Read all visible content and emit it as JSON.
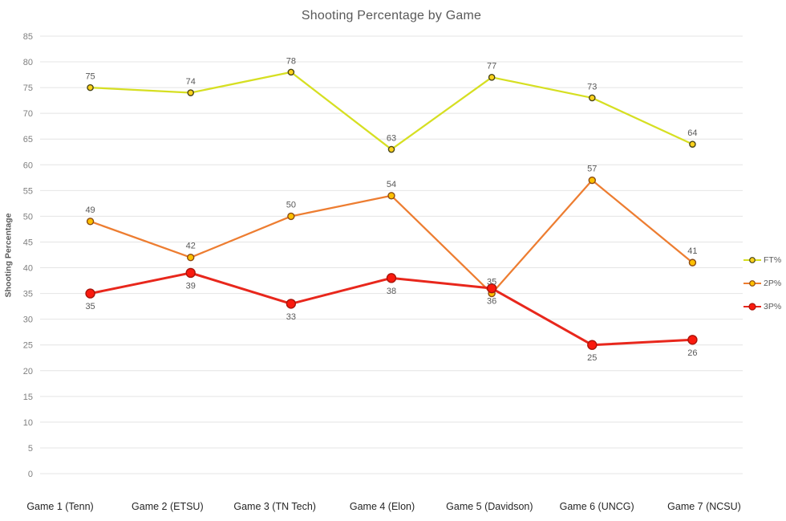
{
  "chart_data": {
    "type": "line",
    "title": "Shooting Percentage by Game",
    "xlabel": "",
    "ylabel": "Shooting Percentage",
    "categories": [
      "Game 1 (Tenn)",
      "Game 2 (ETSU)",
      "Game 3 (TN Tech)",
      "Game 4 (Elon)",
      "Game 5 (Davidson)",
      "Game 6 (UNCG)",
      "Game 7 (NCSU)"
    ],
    "series": [
      {
        "name": "FT%",
        "values": [
          75,
          74,
          78,
          63,
          77,
          73,
          64
        ],
        "line_color": "#d6df22",
        "marker_fill": "#ffd21c",
        "marker_stroke": "#494616",
        "marker_radius": 3.6,
        "line_width": 2.25,
        "label_position": "above"
      },
      {
        "name": "2P%",
        "values": [
          49,
          42,
          50,
          54,
          35,
          57,
          41
        ],
        "line_color": "#ed7d31",
        "marker_fill": "#ffc000",
        "marker_stroke": "#8a4a13",
        "marker_radius": 4,
        "line_width": 2.25,
        "label_position": "above"
      },
      {
        "name": "3P%",
        "values": [
          35,
          39,
          33,
          38,
          36,
          25,
          26
        ],
        "line_color": "#e8271c",
        "marker_fill": "#fa1a0e",
        "marker_stroke": "#a8150b",
        "marker_radius": 5.5,
        "line_width": 3,
        "label_position": "below"
      }
    ],
    "ylim": [
      0,
      85
    ],
    "ytick_step": 5,
    "grid": true,
    "legend_position": "right",
    "colors": {
      "gridline": "#e4e4e4",
      "y_tick_label": "#7f7f7f",
      "x_tick_label": "#262626",
      "data_label": "#595959",
      "title": "#595959"
    }
  }
}
